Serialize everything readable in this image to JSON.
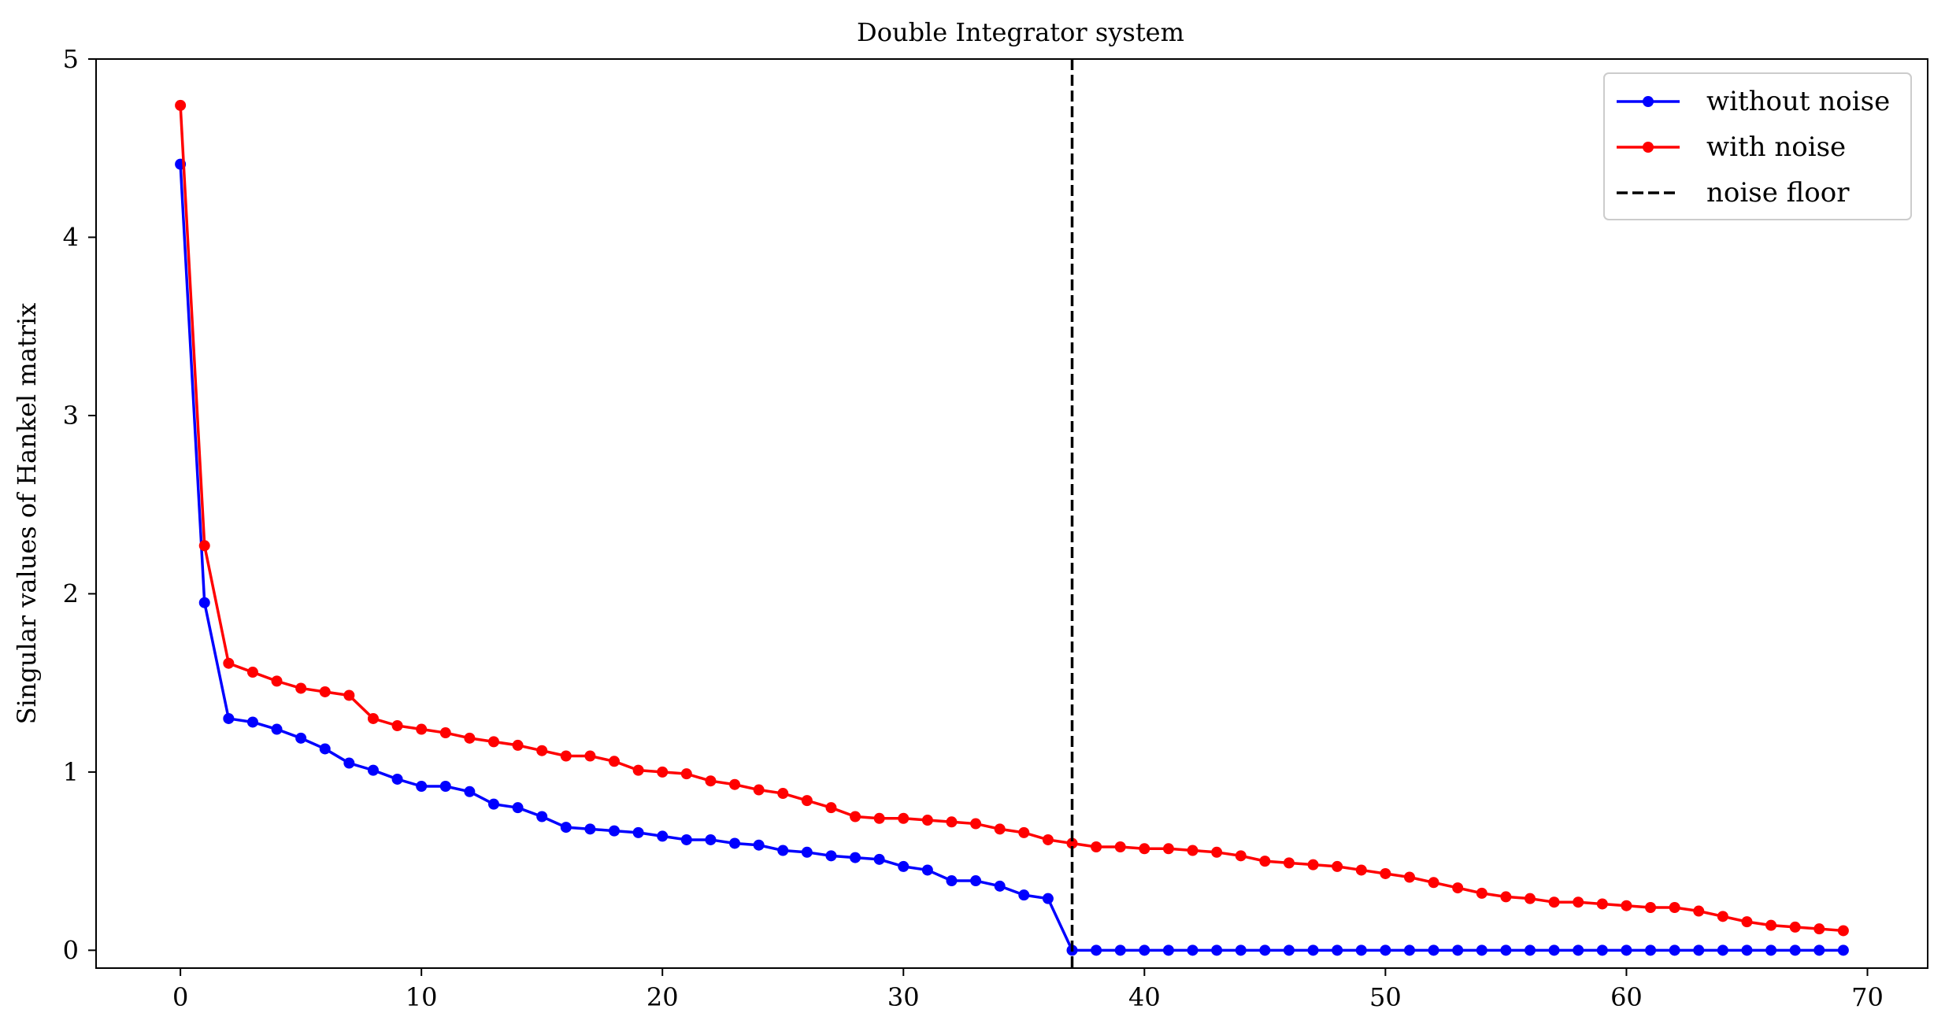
{
  "chart_data": {
    "type": "line",
    "title": "Double Integrator system",
    "xlabel": "",
    "ylabel": "Singular values of Hankel matrix",
    "xlim": [
      -3.5,
      72.5
    ],
    "ylim": [
      -0.1,
      5
    ],
    "xticks": [
      0,
      10,
      20,
      30,
      40,
      50,
      60,
      70
    ],
    "yticks": [
      0,
      1,
      2,
      3,
      4,
      5
    ],
    "grid": false,
    "legend_position": "top-right",
    "series": [
      {
        "name": "without noise",
        "color": "#0000ff",
        "marker": "circle",
        "x_start": 0,
        "values": [
          4.41,
          1.95,
          1.3,
          1.28,
          1.24,
          1.19,
          1.13,
          1.05,
          1.01,
          0.96,
          0.92,
          0.92,
          0.89,
          0.82,
          0.8,
          0.75,
          0.69,
          0.68,
          0.67,
          0.66,
          0.64,
          0.62,
          0.62,
          0.6,
          0.59,
          0.56,
          0.55,
          0.53,
          0.52,
          0.51,
          0.47,
          0.45,
          0.39,
          0.39,
          0.36,
          0.31,
          0.29,
          0.0,
          0.0,
          0.0,
          0.0,
          0.0,
          0.0,
          0.0,
          0.0,
          0.0,
          0.0,
          0.0,
          0.0,
          0.0,
          0.0,
          0.0,
          0.0,
          0.0,
          0.0,
          0.0,
          0.0,
          0.0,
          0.0,
          0.0,
          0.0,
          0.0,
          0.0,
          0.0,
          0.0,
          0.0,
          0.0,
          0.0,
          0.0,
          0.0
        ]
      },
      {
        "name": "with noise",
        "color": "#ff0000",
        "marker": "circle",
        "x_start": 0,
        "values": [
          4.74,
          2.27,
          1.61,
          1.56,
          1.51,
          1.47,
          1.45,
          1.43,
          1.3,
          1.26,
          1.24,
          1.22,
          1.19,
          1.17,
          1.15,
          1.12,
          1.09,
          1.09,
          1.06,
          1.01,
          1.0,
          0.99,
          0.95,
          0.93,
          0.9,
          0.88,
          0.84,
          0.8,
          0.75,
          0.74,
          0.74,
          0.73,
          0.72,
          0.71,
          0.68,
          0.66,
          0.62,
          0.6,
          0.58,
          0.58,
          0.57,
          0.57,
          0.56,
          0.55,
          0.53,
          0.5,
          0.49,
          0.48,
          0.47,
          0.45,
          0.43,
          0.41,
          0.38,
          0.35,
          0.32,
          0.3,
          0.29,
          0.27,
          0.27,
          0.26,
          0.25,
          0.24,
          0.24,
          0.22,
          0.19,
          0.16,
          0.14,
          0.13,
          0.12,
          0.11
        ]
      }
    ],
    "vline": {
      "name": "noise floor",
      "x": 37,
      "color": "#000000",
      "style": "dashed"
    }
  }
}
